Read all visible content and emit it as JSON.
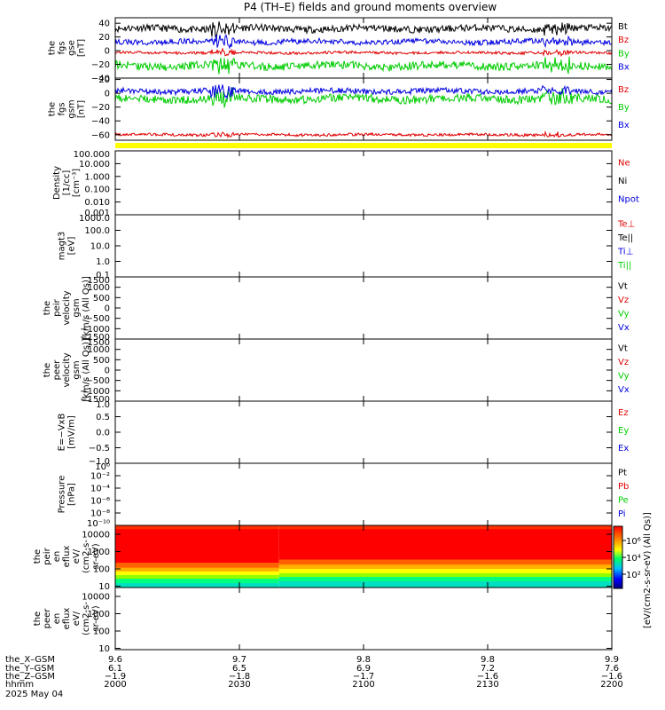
{
  "title": "P4 (TH–E) fields and ground moments overview",
  "colors": {
    "black": "#000000",
    "red": "#e00000",
    "green": "#00cc00",
    "blue": "#0000e0",
    "yellow": "#ffff00"
  },
  "chart_data": [
    {
      "type": "line",
      "id": "fgs-gse",
      "ylabel": [
        "the",
        "fgs",
        "gse",
        "[nT]"
      ],
      "ylim": [
        -40,
        48
      ],
      "ticks": [
        "40",
        "20",
        "0",
        "−20",
        "−40"
      ],
      "tick_values": [
        40,
        20,
        0,
        -20,
        -40
      ],
      "series": [
        {
          "name": "Bt",
          "color": "#000000",
          "mean": 32,
          "amp": 5
        },
        {
          "name": "Bz",
          "color": "#e00000",
          "mean": -3,
          "amp": 2
        },
        {
          "name": "By",
          "color": "#00cc00",
          "mean": -22,
          "amp": 6
        },
        {
          "name": "Bx",
          "color": "#0000e0",
          "mean": 13,
          "amp": 4
        }
      ]
    },
    {
      "type": "line",
      "id": "fgs-gsm",
      "ylabel": [
        "the",
        "fgs",
        "gsm",
        "[nT]"
      ],
      "ylim": [
        -68,
        22
      ],
      "ticks": [
        "20",
        "0",
        "−20",
        "−40",
        "−60"
      ],
      "tick_values": [
        20,
        0,
        -20,
        -40,
        -60
      ],
      "series": [
        {
          "name": "Bz",
          "color": "#e00000",
          "mean": -60,
          "amp": 2
        },
        {
          "name": "By",
          "color": "#00cc00",
          "mean": -8,
          "amp": 6
        },
        {
          "name": "Bx",
          "color": "#0000e0",
          "mean": 3,
          "amp": 4
        }
      ]
    },
    {
      "type": "line",
      "id": "density",
      "ylabel": [
        "Density",
        "[1/cc]",
        "[cm⁻³]"
      ],
      "ticks": [
        "100.000",
        "10.000",
        "1.000",
        "0.100",
        "0.010",
        "0.001"
      ],
      "series": [
        {
          "name": "Ne",
          "color": "#e00000"
        },
        {
          "name": "Ni",
          "color": "#000000"
        },
        {
          "name": "Npot",
          "color": "#0000e0"
        }
      ]
    },
    {
      "type": "line",
      "id": "temperature",
      "ylabel": [
        "magt3",
        "[eV]"
      ],
      "ticks": [
        "1000.0",
        "100.0",
        "10.0",
        "1.0",
        "0.1"
      ],
      "series": [
        {
          "name": "Te⊥",
          "color": "#e00000"
        },
        {
          "name": "Te||",
          "color": "#000000"
        },
        {
          "name": "Ti⊥",
          "color": "#0000e0"
        },
        {
          "name": "Ti||",
          "color": "#00cc00"
        }
      ]
    },
    {
      "type": "line",
      "id": "peir-velocity",
      "ylabel": [
        "the",
        "peir",
        "velocity",
        "gsm",
        "[km/s (All Qs)]"
      ],
      "ticks": [
        "1500",
        "1000",
        "500",
        "0",
        "−500",
        "−1000",
        "−1500"
      ],
      "series": [
        {
          "name": "Vt",
          "color": "#000000"
        },
        {
          "name": "Vz",
          "color": "#e00000"
        },
        {
          "name": "Vy",
          "color": "#00cc00"
        },
        {
          "name": "Vx",
          "color": "#0000e0"
        }
      ]
    },
    {
      "type": "line",
      "id": "peer-velocity",
      "ylabel": [
        "the",
        "peer",
        "velocity",
        "gsm",
        "[km/s (All Qs)]"
      ],
      "ticks": [
        "1500",
        "1000",
        "500",
        "0",
        "−500",
        "−1000",
        "−1500"
      ],
      "series": [
        {
          "name": "Vt",
          "color": "#000000"
        },
        {
          "name": "Vz",
          "color": "#e00000"
        },
        {
          "name": "Vy",
          "color": "#00cc00"
        },
        {
          "name": "Vx",
          "color": "#0000e0"
        }
      ]
    },
    {
      "type": "line",
      "id": "efield",
      "ylabel": [
        "E=−VxB",
        "[mV/m]"
      ],
      "ticks": [
        "1.0",
        "0.5",
        "0.0",
        "−0.5",
        "−1.0"
      ],
      "series": [
        {
          "name": "Ez",
          "color": "#e00000"
        },
        {
          "name": "Ey",
          "color": "#00cc00"
        },
        {
          "name": "Ex",
          "color": "#0000e0"
        }
      ]
    },
    {
      "type": "line",
      "id": "pressure",
      "ylabel": [
        "Pressure",
        "[nPa]"
      ],
      "ticks": [
        "10⁰",
        "10⁻²",
        "10⁻⁴",
        "10⁻⁶",
        "10⁻⁸",
        "10⁻¹⁰"
      ],
      "series": [
        {
          "name": "Pt",
          "color": "#000000"
        },
        {
          "name": "Pb",
          "color": "#e00000"
        },
        {
          "name": "Pe",
          "color": "#00cc00"
        },
        {
          "name": "Pi",
          "color": "#0000e0"
        }
      ]
    },
    {
      "type": "heatmap",
      "id": "peir-eflux",
      "ylabel": [
        "the",
        "peir",
        "en",
        "eflux",
        "eV/",
        "(cm2-s-",
        "sr-eV)"
      ],
      "ticks": [
        "10000",
        "1000",
        "100",
        "10"
      ]
    },
    {
      "type": "heatmap",
      "id": "peer-eflux",
      "ylabel": [
        "the",
        "peer",
        "en",
        "eflux",
        "eV/",
        "(cm2-s-",
        "sr-eV)"
      ],
      "ticks": [
        "10000",
        "1000",
        "100",
        "10"
      ]
    }
  ],
  "colorbar": {
    "label": "[eV/(cm2-s-sr-eV) (All Qs)]",
    "ticks": [
      "10⁶",
      "10⁴",
      "10²"
    ]
  },
  "xaxis": {
    "row_labels": [
      "the_X–GSM",
      "the_Y–GSM",
      "the_Z–GSM",
      "hhmm",
      "2025 May 04"
    ],
    "columns": [
      {
        "x": "9.6",
        "y": "6.1",
        "z": "−1.9",
        "hhmm": "2000"
      },
      {
        "x": "9.7",
        "y": "6.5",
        "z": "−1.8",
        "hhmm": "2030"
      },
      {
        "x": "9.8",
        "y": "6.9",
        "z": "−1.7",
        "hhmm": "2100"
      },
      {
        "x": "9.8",
        "y": "7.2",
        "z": "−1.6",
        "hhmm": "2130"
      },
      {
        "x": "9.9",
        "y": "7.6",
        "z": "−1.6",
        "hhmm": "2200"
      }
    ]
  }
}
